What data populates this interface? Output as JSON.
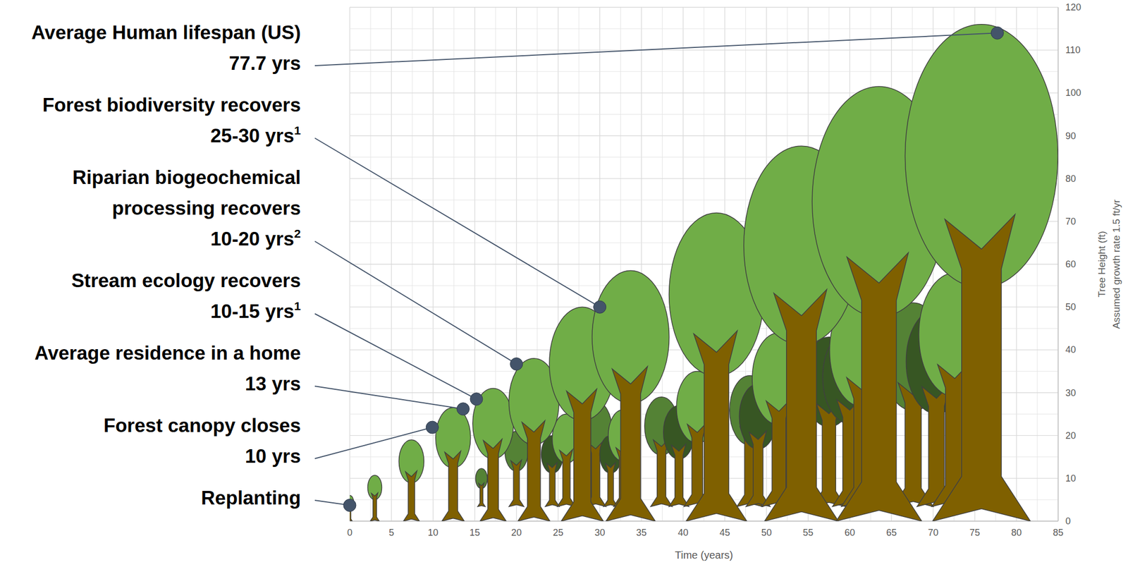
{
  "chart_data": {
    "type": "pictograph",
    "x_label": "Time (years)",
    "y_label": "Tree Height (ft)",
    "y_note": "Assumed growth rate 1.5 ft/yr",
    "xlim": [
      0,
      85
    ],
    "xticks": [
      0,
      5,
      10,
      15,
      20,
      25,
      30,
      35,
      40,
      45,
      50,
      55,
      60,
      65,
      70,
      75,
      80,
      85
    ],
    "ylim": [
      0,
      120
    ],
    "yticks": [
      0,
      10,
      20,
      30,
      40,
      50,
      60,
      70,
      80,
      90,
      100,
      110,
      120
    ],
    "grid": true,
    "series": [
      {
        "color": "#548235",
        "x": [
          15.8,
          20,
          29.5,
          37.4,
          48,
          67.6
        ],
        "values": [
          12.3,
          21,
          28,
          29,
          34,
          51
        ]
      },
      {
        "color": "#375623",
        "x": [
          24.3,
          31.3,
          39.5,
          49,
          57.5,
          60,
          70.4
        ],
        "values": [
          20,
          20,
          27,
          32,
          43,
          44.5,
          49.5
        ]
      },
      {
        "color": "#70ad47",
        "x": [
          26,
          32.8,
          41.7,
          51.5,
          61.5,
          72.6
        ],
        "values": [
          25,
          26,
          35,
          44,
          53,
          58
        ]
      },
      {
        "color": "#70ad47",
        "x": [
          0,
          3,
          7.4,
          12.4,
          17.2,
          22.1,
          27.9,
          33.7,
          44,
          54.2,
          63.5,
          75.8
        ],
        "values": [
          6,
          10.7,
          19,
          26.5,
          31,
          38,
          50,
          58.5,
          72,
          87.6,
          101.5,
          116
        ]
      }
    ],
    "annotations": [
      {
        "text": "Average Human lifespan (US)",
        "years": "77.7 yrs",
        "x": 77.7,
        "y": 114
      },
      {
        "text": "Forest biodiversity recovers",
        "years": "25-30 yrs",
        "note": "1",
        "x": 30,
        "y": 50
      },
      {
        "text": "Riparian biogeochemical processing recovers",
        "years": "10-20 yrs",
        "note": "2",
        "x": 20,
        "y": 36.7
      },
      {
        "text": "Stream ecology recovers",
        "years": "10-15 yrs",
        "note": "1",
        "x": 15.2,
        "y": 28.5
      },
      {
        "text": "Average residence in a home",
        "years": "13 yrs",
        "x": 13.6,
        "y": 26.2
      },
      {
        "text": "Forest canopy closes",
        "years": "10 yrs",
        "x": 9.9,
        "y": 21.9
      },
      {
        "text": "Replanting",
        "x": 0,
        "y": 3.7
      }
    ]
  }
}
